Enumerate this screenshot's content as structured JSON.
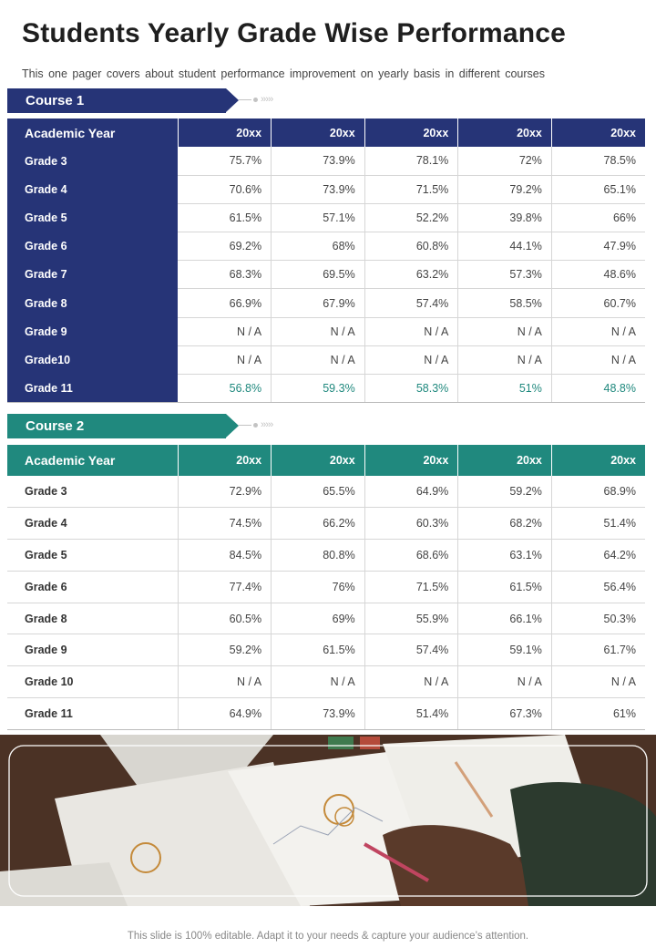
{
  "title": "Students Yearly Grade Wise Performance",
  "subtitle": "This one pager covers about student performance improvement on yearly basis in different courses",
  "course1": {
    "tab_label": "Course 1",
    "header": [
      "Academic Year",
      "20xx",
      "20xx",
      "20xx",
      "20xx",
      "20xx"
    ],
    "rows": [
      {
        "grade": "Grade 3",
        "values": [
          "75.7%",
          "73.9%",
          "78.1%",
          "72%",
          "78.5%"
        ]
      },
      {
        "grade": "Grade 4",
        "values": [
          "70.6%",
          "73.9%",
          "71.5%",
          "79.2%",
          "65.1%"
        ]
      },
      {
        "grade": "Grade 5",
        "values": [
          "61.5%",
          "57.1%",
          "52.2%",
          "39.8%",
          "66%"
        ]
      },
      {
        "grade": "Grade 6",
        "values": [
          "69.2%",
          "68%",
          "60.8%",
          "44.1%",
          "47.9%"
        ]
      },
      {
        "grade": "Grade 7",
        "values": [
          "68.3%",
          "69.5%",
          "63.2%",
          "57.3%",
          "48.6%"
        ]
      },
      {
        "grade": "Grade 8",
        "values": [
          "66.9%",
          "67.9%",
          "57.4%",
          "58.5%",
          "60.7%"
        ]
      },
      {
        "grade": "Grade 9",
        "values": [
          "N / A",
          "N / A",
          "N / A",
          "N / A",
          "N / A"
        ]
      },
      {
        "grade": "Grade10",
        "values": [
          "N / A",
          "N / A",
          "N / A",
          "N / A",
          "N / A"
        ]
      },
      {
        "grade": "Grade 11",
        "values": [
          "56.8%",
          "59.3%",
          "58.3%",
          "51%",
          "48.8%"
        ]
      }
    ]
  },
  "course2": {
    "tab_label": "Course 2",
    "header": [
      "Academic Year",
      "20xx",
      "20xx",
      "20xx",
      "20xx",
      "20xx"
    ],
    "rows": [
      {
        "grade": "Grade 3",
        "values": [
          "72.9%",
          "65.5%",
          "64.9%",
          "59.2%",
          "68.9%"
        ]
      },
      {
        "grade": "Grade 4",
        "values": [
          "74.5%",
          "66.2%",
          "60.3%",
          "68.2%",
          "51.4%"
        ]
      },
      {
        "grade": "Grade 5",
        "values": [
          "84.5%",
          "80.8%",
          "68.6%",
          "63.1%",
          "64.2%"
        ]
      },
      {
        "grade": "Grade 6",
        "values": [
          "77.4%",
          "76%",
          "71.5%",
          "61.5%",
          "56.4%"
        ]
      },
      {
        "grade": "Grade 8",
        "values": [
          "60.5%",
          "69%",
          "55.9%",
          "66.1%",
          "50.3%"
        ]
      },
      {
        "grade": "Grade 9",
        "values": [
          "59.2%",
          "61.5%",
          "57.4%",
          "59.1%",
          "61.7%"
        ]
      },
      {
        "grade": "Grade 10",
        "values": [
          "N / A",
          "N / A",
          "N / A",
          "N / A",
          "N / A"
        ]
      },
      {
        "grade": "Grade 11",
        "values": [
          "64.9%",
          "73.9%",
          "51.4%",
          "67.3%",
          "61%"
        ]
      }
    ]
  },
  "footer": "This slide is 100% editable. Adapt it to your needs & capture your audience’s attention.",
  "colors": {
    "navy": "#263477",
    "teal": "#20897e"
  }
}
